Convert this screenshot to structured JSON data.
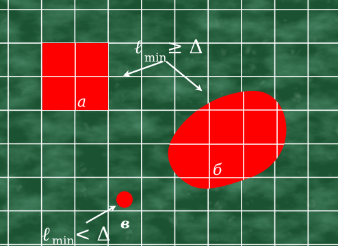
{
  "background": {
    "texture": "green marble",
    "base_color": "#1f5a36",
    "vein_color": "#6f9c7e",
    "grid_color": "#ffffff",
    "grid_columns": 10,
    "grid_rows": 7
  },
  "shapes": {
    "color": "#ff0000",
    "a": {
      "label": "a",
      "kind": "square covering 2x2 grid cells"
    },
    "b": {
      "label": "б",
      "kind": "irregular blob"
    },
    "c": {
      "label": "в",
      "kind": "small dot"
    }
  },
  "annotations": {
    "top": {
      "prefix": "ℓ",
      "subscript": "min",
      "relation": "≥ Δ"
    },
    "bottom": {
      "prefix": "ℓ",
      "subscript": "min",
      "relation": "< Δ"
    }
  },
  "arrow_color": "#ffffff"
}
